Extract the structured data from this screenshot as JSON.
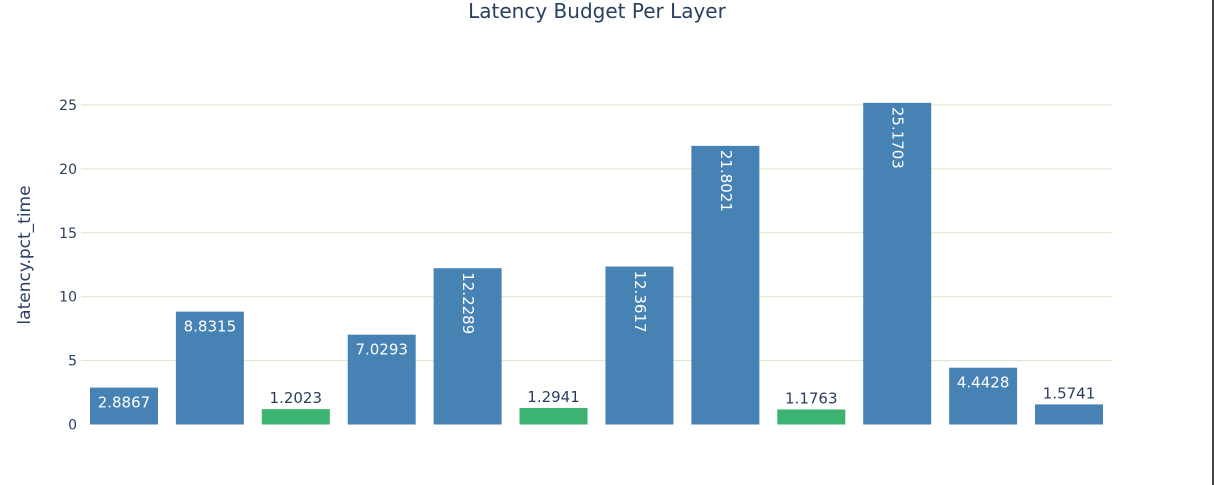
{
  "chart_data": {
    "type": "bar",
    "title": "Latency Budget Per Layer",
    "xlabel": "",
    "ylabel": "latency.pct_time",
    "ylim": [
      0,
      28.3
    ],
    "yticks": [
      0,
      5,
      10,
      15,
      20,
      25
    ],
    "grid": true,
    "legend": "none",
    "values": [
      2.8867,
      8.8315,
      1.2023,
      7.0293,
      12.2289,
      1.2941,
      12.3617,
      21.8021,
      1.1763,
      25.1703,
      4.4428,
      1.5741
    ],
    "labels": [
      "2.8867",
      "8.8315",
      "1.2023",
      "7.0293",
      "12.2289",
      "1.2941",
      "12.3617",
      "21.8021",
      "1.1763",
      "25.1703",
      "4.4428",
      "1.5741"
    ],
    "highlighted": [
      false,
      false,
      true,
      false,
      false,
      true,
      false,
      false,
      true,
      false,
      false,
      false
    ],
    "colors": {
      "default": "#4682b4",
      "highlight": "#3cb371",
      "grid": "#d9e5c3",
      "text": "#2a3f5f"
    }
  }
}
